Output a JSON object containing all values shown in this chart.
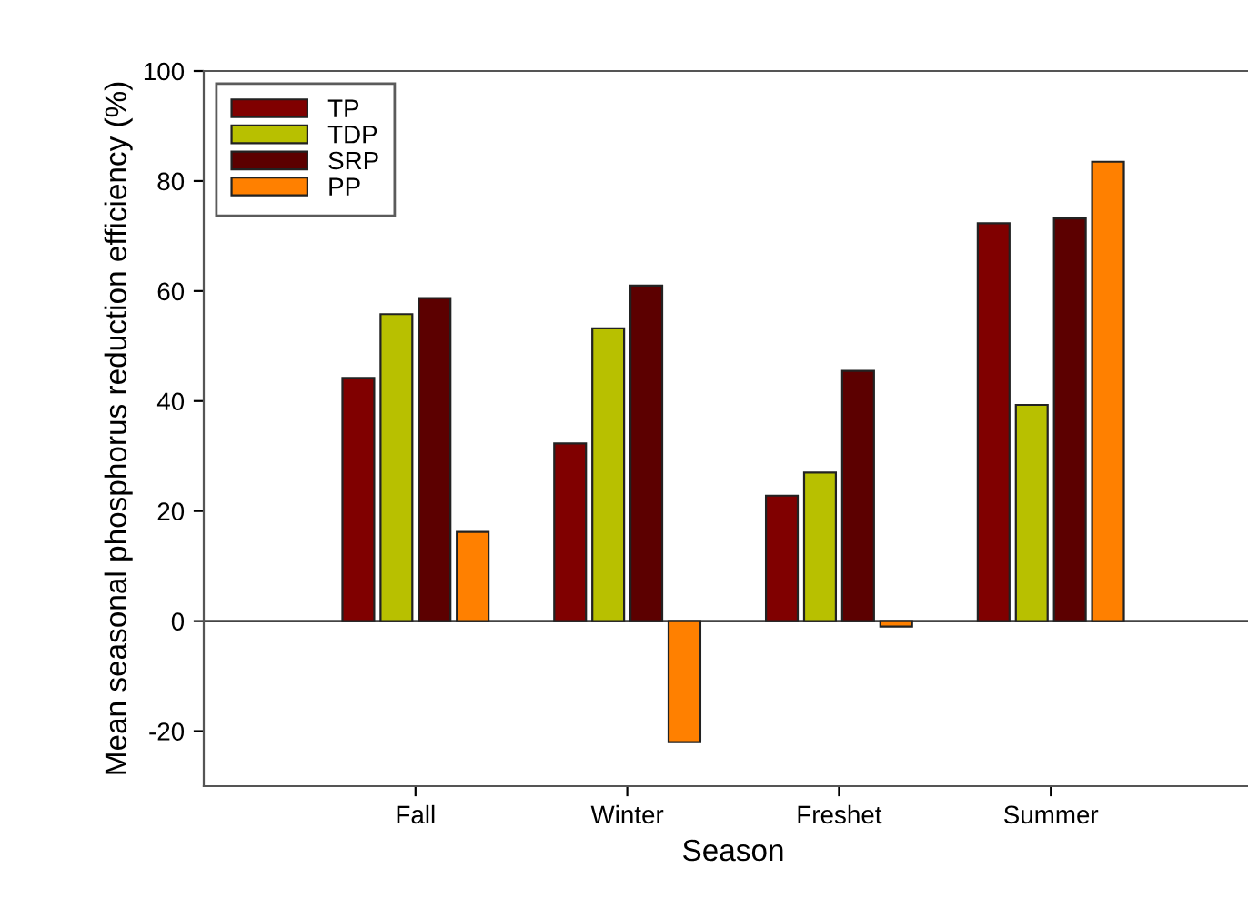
{
  "chart_data": {
    "type": "bar",
    "xlabel": "Season",
    "ylabel": "Mean seasonal phosphorus reduction efficiency (%)",
    "categories": [
      "Fall",
      "Winter",
      "Freshet",
      "Summer"
    ],
    "series": [
      {
        "name": "TP",
        "color": "#800000",
        "values": [
          44.2,
          32.3,
          22.8,
          72.3
        ]
      },
      {
        "name": "TDP",
        "color": "#b8c000",
        "values": [
          55.8,
          53.2,
          27,
          39.3
        ]
      },
      {
        "name": "SRP",
        "color": "#5c0000",
        "values": [
          58.7,
          61,
          45.5,
          73.2
        ]
      },
      {
        "name": "PP",
        "color": "#ff8000",
        "values": [
          16.2,
          -22,
          -1,
          83.5
        ]
      }
    ],
    "ylim": [
      -30,
      100
    ],
    "yticks": [
      -20,
      0,
      20,
      40,
      60,
      80,
      100
    ],
    "grid": false,
    "legend": "top left",
    "ref_lines": [
      {
        "axis": "y",
        "value": 0
      }
    ]
  }
}
